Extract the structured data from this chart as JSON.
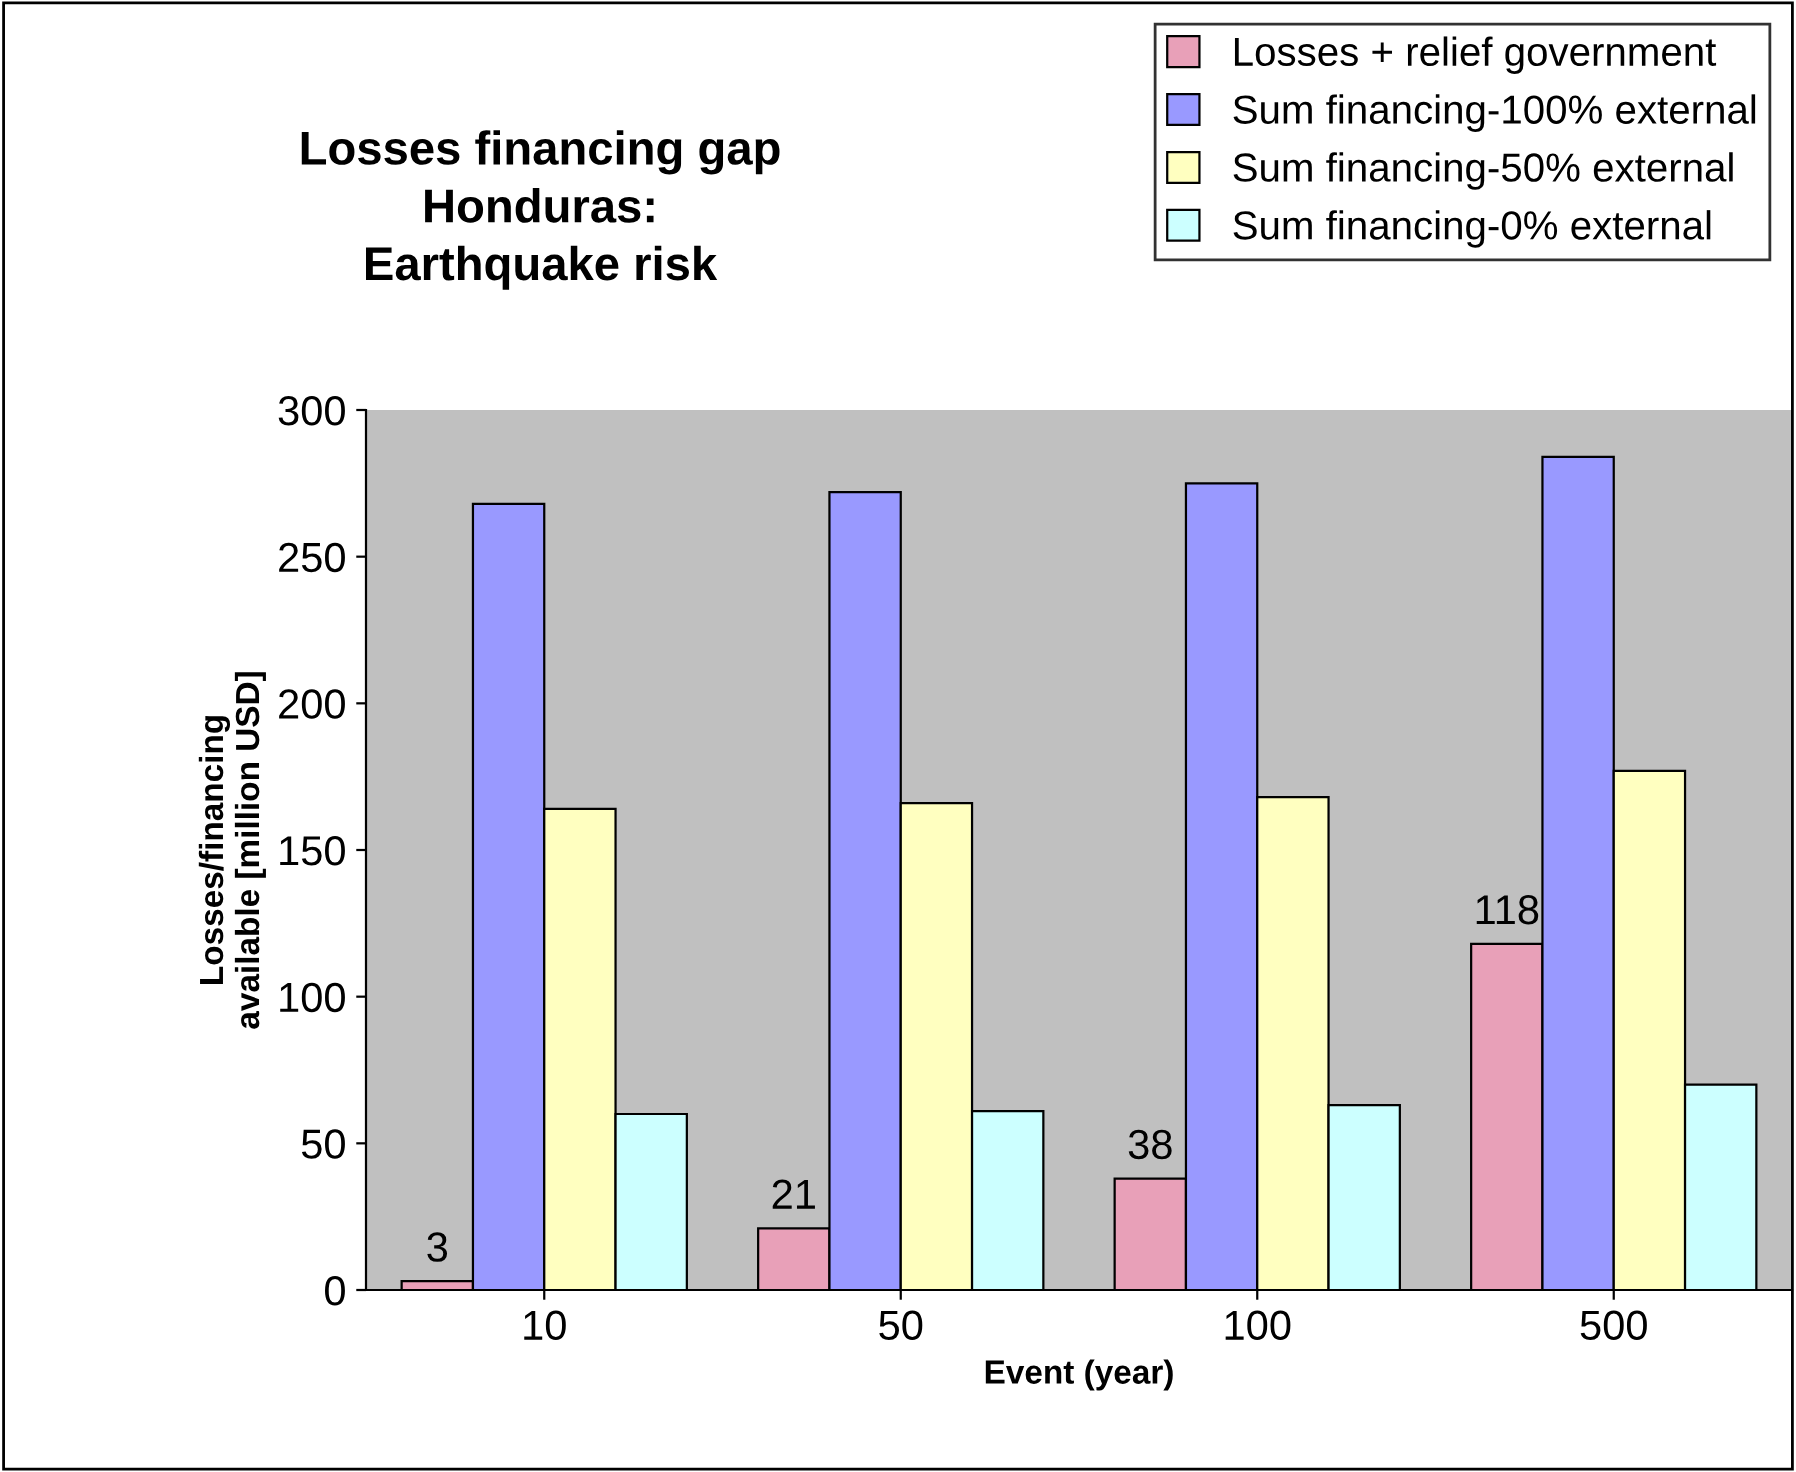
{
  "chart_data": {
    "type": "bar",
    "title": "Losses financing gap\nHonduras:\nEarthquake risk",
    "xlabel": "Event (year)",
    "ylabel": "Losses/financing\navailable [million USD]",
    "categories": [
      "10",
      "50",
      "100",
      "500"
    ],
    "series": [
      {
        "name": "Losses + relief government",
        "color": "#e8a0b8",
        "values": [
          3,
          21,
          38,
          118
        ],
        "value_labels": [
          "3",
          "21",
          "38",
          "118"
        ]
      },
      {
        "name": "Sum financing-100% external",
        "color": "#9999ff",
        "values": [
          268,
          272,
          275,
          284
        ]
      },
      {
        "name": "Sum financing-50% external",
        "color": "#ffffc0",
        "values": [
          164,
          166,
          168,
          177
        ]
      },
      {
        "name": "Sum financing-0% external",
        "color": "#ccffff",
        "values": [
          60,
          61,
          63,
          70
        ]
      }
    ],
    "ylim": [
      0,
      300
    ],
    "yticks": [
      0,
      50,
      100,
      150,
      200,
      250,
      300
    ],
    "grid": false,
    "legend": "top right"
  }
}
